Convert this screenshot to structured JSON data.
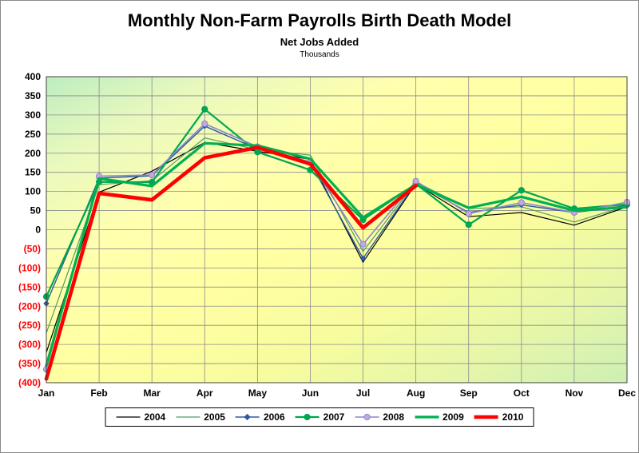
{
  "chart_data": {
    "type": "line",
    "title": "Monthly Non-Farm Payrolls Birth Death Model",
    "subtitle": "Net Jobs Added",
    "unit_label": "Thousands",
    "categories": [
      "Jan",
      "Feb",
      "Mar",
      "Apr",
      "May",
      "Jun",
      "Jul",
      "Aug",
      "Sep",
      "Oct",
      "Nov",
      "Dec"
    ],
    "y_axis": {
      "min": -400,
      "max": 400,
      "step": 50,
      "negative_style": "parentheses",
      "negative_color": "#FF0000",
      "positive_color": "#000000"
    },
    "grid": true,
    "legend_position": "bottom",
    "plot_background": [
      "#BDEDC0",
      "#E9F9BE",
      "#FFFFAE",
      "#FFFFA2",
      "#F7FC9E",
      "#E4F6AA",
      "#CDEFB4"
    ],
    "series": [
      {
        "name": "2004",
        "color": "#000000",
        "width": 1.2,
        "marker": "none",
        "marker_fill": "#000000",
        "values": [
          -321,
          98,
          153,
          228,
          205,
          184,
          -85,
          120,
          34,
          45,
          12,
          60
        ]
      },
      {
        "name": "2005",
        "color": "#4F9E63",
        "width": 1.2,
        "marker": "none",
        "marker_fill": "#4F9E63",
        "values": [
          -270,
          118,
          128,
          240,
          209,
          195,
          -57,
          125,
          55,
          60,
          20,
          62
        ]
      },
      {
        "name": "2006",
        "color": "#30599F",
        "width": 1.4,
        "marker": "diamond",
        "marker_fill": "#30599F",
        "values": [
          -193,
          135,
          141,
          271,
          211,
          175,
          -75,
          122,
          45,
          65,
          45,
          63
        ]
      },
      {
        "name": "2007",
        "color": "#00A651",
        "width": 2.2,
        "marker": "circle",
        "marker_fill": "#00A651",
        "values": [
          -175,
          125,
          124,
          315,
          203,
          156,
          26,
          120,
          13,
          103,
          55,
          66
        ]
      },
      {
        "name": "2008",
        "color": "#8888CC",
        "width": 1.6,
        "marker": "circle",
        "marker_fill": "#C9A6E0",
        "values": [
          -365,
          140,
          143,
          277,
          217,
          177,
          -38,
          127,
          42,
          71,
          45,
          72
        ]
      },
      {
        "name": "2009",
        "color": "#00B050",
        "width": 3.2,
        "marker": "none",
        "marker_fill": "#00B050",
        "values": [
          -355,
          134,
          114,
          226,
          220,
          185,
          32,
          118,
          57,
          86,
          50,
          59
        ]
      },
      {
        "name": "2010",
        "color": "#FF0000",
        "width": 4.6,
        "marker": "none",
        "marker_fill": "#FF0000",
        "values": [
          -390,
          95,
          78,
          188,
          215,
          172,
          5,
          115,
          null,
          null,
          null,
          null
        ]
      }
    ]
  }
}
